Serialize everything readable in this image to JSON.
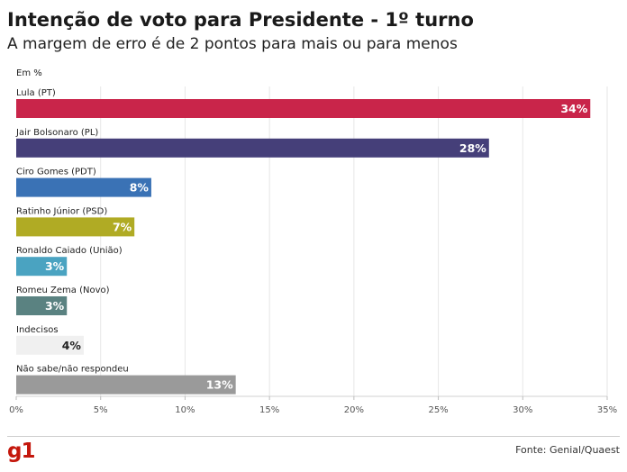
{
  "header": {
    "title": "Intenção de voto para Presidente - 1º turno",
    "subtitle": "A margem de erro é de 2 pontos para mais ou para menos",
    "unit_label": "Em %"
  },
  "footer": {
    "logo": "g1",
    "source": "Fonte: Genial/Quaest"
  },
  "chart_data": {
    "type": "bar",
    "orientation": "horizontal",
    "categories": [
      "Lula (PT)",
      "Jair Bolsonaro (PL)",
      "Ciro Gomes (PDT)",
      "Ratinho Júnior (PSD)",
      "Ronaldo Caiado (União)",
      "Romeu Zema (Novo)",
      "Indecisos",
      "Não sabe/não respondeu"
    ],
    "values": [
      34,
      28,
      8,
      7,
      3,
      3,
      4,
      13
    ],
    "value_labels": [
      "34%",
      "28%",
      "8%",
      "7%",
      "3%",
      "3%",
      "4%",
      "13%"
    ],
    "colors": [
      "#c9254a",
      "#453f79",
      "#3a72b5",
      "#b0ab24",
      "#4aa3c1",
      "#5a8281",
      "#f0f0f0",
      "#9a9a9a"
    ],
    "label_colors": [
      "#ffffff",
      "#ffffff",
      "#ffffff",
      "#ffffff",
      "#ffffff",
      "#ffffff",
      "#222222",
      "#ffffff"
    ],
    "xlim": [
      0,
      35
    ],
    "xticks": [
      0,
      5,
      10,
      15,
      20,
      25,
      30,
      35
    ],
    "xtick_labels": [
      "0%",
      "5%",
      "10%",
      "15%",
      "20%",
      "25%",
      "30%",
      "35%"
    ],
    "grid": true
  }
}
